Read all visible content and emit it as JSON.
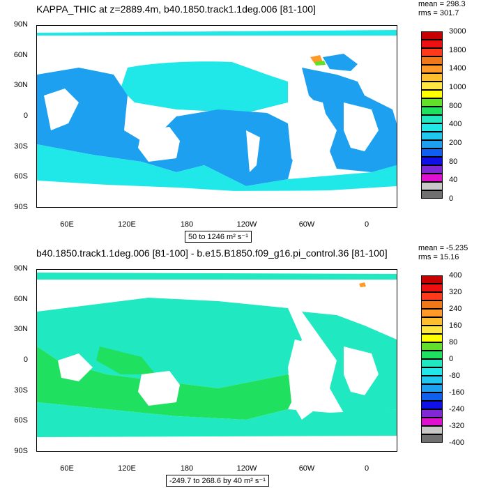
{
  "panels": [
    {
      "id": "top",
      "title": "KAPPA_THIC at z=2889.4m, b40.1850.track1.1deg.006 [81-100]",
      "stats": {
        "mean": "mean = 298.3",
        "rms": "rms = 301.7"
      },
      "range_label": "50 to 1246 m² s⁻¹",
      "lat_labels": [
        "90N",
        "60N",
        "30N",
        "0",
        "30S",
        "60S",
        "90S"
      ],
      "lon_labels": [
        "60E",
        "120E",
        "180",
        "120W",
        "60W",
        "0"
      ],
      "legend": {
        "colors": [
          "#c80000",
          "#ee1010",
          "#ff3a1a",
          "#f07818",
          "#ff9a28",
          "#ffbe2e",
          "#ffe640",
          "#ffff00",
          "#60e028",
          "#20e060",
          "#20e8c0",
          "#20e8e8",
          "#20c8f0",
          "#1ea0f0",
          "#1060f0",
          "#1010e8",
          "#8028d8",
          "#e010d0",
          "#c8c8c8",
          "#707070"
        ],
        "labels": [
          "3000",
          "1800",
          "1400",
          "1000",
          "800",
          "400",
          "200",
          "80",
          "40",
          "0"
        ]
      }
    },
    {
      "id": "bottom",
      "title": "b40.1850.track1.1deg.006 [81-100] - b.e15.B1850.f09_g16.pi_control.36 [81-100]",
      "stats": {
        "mean": "mean = -5.235",
        "rms": "rms = 15.16"
      },
      "range_label": "-249.7 to 268.6 by 40 m² s⁻¹",
      "lat_labels": [
        "90N",
        "60N",
        "30N",
        "0",
        "30S",
        "60S",
        "90S"
      ],
      "lon_labels": [
        "60E",
        "120E",
        "180",
        "120W",
        "60W",
        "0"
      ],
      "legend": {
        "colors": [
          "#c80000",
          "#ee1010",
          "#ff3a1a",
          "#f07818",
          "#ff9a28",
          "#ffbe2e",
          "#ffe640",
          "#ffff00",
          "#60e028",
          "#20e060",
          "#20e8c0",
          "#20e8e8",
          "#20c8f0",
          "#1ea0f0",
          "#1060f0",
          "#1010e8",
          "#8028d8",
          "#e010d0",
          "#c8c8c8",
          "#707070"
        ],
        "labels": [
          "400",
          "320",
          "240",
          "160",
          "80",
          "0",
          "-80",
          "-160",
          "-240",
          "-320",
          "-400"
        ]
      }
    }
  ]
}
